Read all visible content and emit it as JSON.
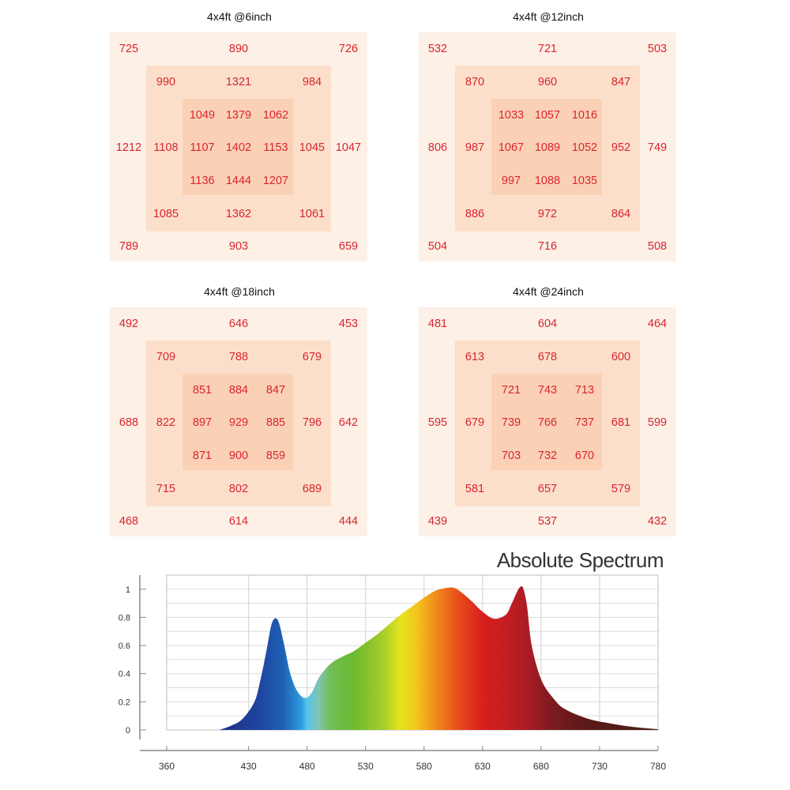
{
  "chart_data": [
    {
      "type": "heatmap",
      "title": "4x4ft @6inch",
      "rows": [
        [
          "725",
          "",
          "890",
          "",
          "726"
        ],
        [
          "",
          "990",
          "1321",
          "984",
          ""
        ],
        [
          "",
          "1049",
          "1379",
          "1062",
          ""
        ],
        [
          "1212",
          "1108",
          "1107",
          "1402",
          "1153",
          "1045",
          "1047"
        ],
        [
          "",
          "1136",
          "1444",
          "1207",
          ""
        ],
        [
          "",
          "1085",
          "1362",
          "1061",
          ""
        ],
        [
          "789",
          "",
          "903",
          "",
          "659"
        ]
      ],
      "grid": {
        "outer": {
          "tl": 725,
          "tc": 890,
          "tr": 726,
          "ml": 1212,
          "mr": 1047,
          "bl": 789,
          "bc": 903,
          "br": 659
        },
        "middle": {
          "tl": 990,
          "tc": 1321,
          "tr": 984,
          "ml": 1108,
          "mr": 1045,
          "bl": 1085,
          "bc": 1362,
          "br": 1061
        },
        "inner": [
          [
            1049,
            1379,
            1062
          ],
          [
            1107,
            1402,
            1153
          ],
          [
            1136,
            1444,
            1207
          ]
        ]
      }
    },
    {
      "type": "heatmap",
      "title": "4x4ft @12inch",
      "grid": {
        "outer": {
          "tl": 532,
          "tc": 721,
          "tr": 503,
          "ml": 806,
          "mr": 749,
          "bl": 504,
          "bc": 716,
          "br": 508
        },
        "middle": {
          "tl": 870,
          "tc": 960,
          "tr": 847,
          "ml": 987,
          "mr": 952,
          "bl": 886,
          "bc": 972,
          "br": 864
        },
        "inner": [
          [
            1033,
            1057,
            1016
          ],
          [
            1067,
            1089,
            1052
          ],
          [
            997,
            1088,
            1035
          ]
        ]
      }
    },
    {
      "type": "heatmap",
      "title": "4x4ft @18inch",
      "grid": {
        "outer": {
          "tl": 492,
          "tc": 646,
          "tr": 453,
          "ml": 688,
          "mr": 642,
          "bl": 468,
          "bc": 614,
          "br": 444
        },
        "middle": {
          "tl": 709,
          "tc": 788,
          "tr": 679,
          "ml": 822,
          "mr": 796,
          "bl": 715,
          "bc": 802,
          "br": 689
        },
        "inner": [
          [
            851,
            884,
            847
          ],
          [
            897,
            929,
            885
          ],
          [
            871,
            900,
            859
          ]
        ]
      }
    },
    {
      "type": "heatmap",
      "title": "4x4ft @24inch",
      "grid": {
        "outer": {
          "tl": 481,
          "tc": 604,
          "tr": 464,
          "ml": 595,
          "mr": 599,
          "bl": 439,
          "bc": 537,
          "br": 432
        },
        "middle": {
          "tl": 613,
          "tc": 678,
          "tr": 600,
          "ml": 679,
          "mr": 681,
          "bl": 581,
          "bc": 657,
          "br": 579
        },
        "inner": [
          [
            721,
            743,
            713
          ],
          [
            739,
            766,
            737
          ],
          [
            703,
            732,
            670
          ]
        ]
      }
    },
    {
      "type": "area",
      "title": "Absolute Spectrum",
      "xlabel": "",
      "ylabel": "",
      "xlim": [
        360,
        780
      ],
      "ylim": [
        0,
        1.1
      ],
      "xticks": [
        "360",
        "430",
        "480",
        "530",
        "580",
        "630",
        "680",
        "730",
        "780"
      ],
      "yticks": [
        "0",
        "0.2",
        "0.4",
        "0.6",
        "0.8",
        "1"
      ],
      "x": [
        405,
        415,
        425,
        435,
        440,
        445,
        450,
        455,
        460,
        465,
        470,
        475,
        480,
        485,
        490,
        500,
        510,
        520,
        530,
        540,
        550,
        560,
        570,
        580,
        590,
        600,
        605,
        610,
        620,
        630,
        640,
        650,
        655,
        660,
        663,
        665,
        668,
        672,
        680,
        690,
        700,
        720,
        740,
        760,
        780
      ],
      "y": [
        0.0,
        0.03,
        0.08,
        0.2,
        0.35,
        0.55,
        0.76,
        0.78,
        0.62,
        0.42,
        0.3,
        0.24,
        0.23,
        0.28,
        0.37,
        0.47,
        0.52,
        0.56,
        0.62,
        0.68,
        0.75,
        0.82,
        0.88,
        0.94,
        0.99,
        1.01,
        1.01,
        0.99,
        0.92,
        0.84,
        0.79,
        0.82,
        0.9,
        0.99,
        1.02,
        1.0,
        0.88,
        0.6,
        0.36,
        0.23,
        0.15,
        0.08,
        0.045,
        0.02,
        0.005
      ]
    }
  ],
  "colors": {
    "value_text": "#d8252f",
    "outer_bg": "#fdf0e6",
    "middle_bg": "#fcdfcb",
    "inner_bg": "#fbd1b6"
  }
}
